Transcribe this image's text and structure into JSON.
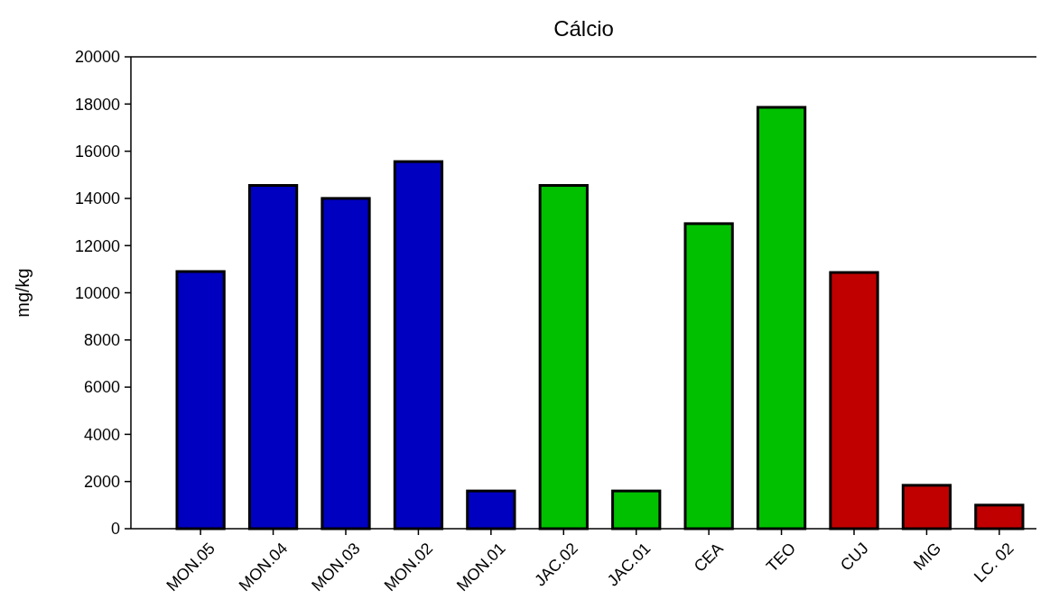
{
  "chart_data": {
    "type": "bar",
    "title": "Cálcio",
    "ylabel": "mg/kg",
    "categories": [
      "MON.05",
      "MON.04",
      "MON.03",
      "MON.02",
      "MON.01",
      "JAC.02",
      "JAC.01",
      "CEA",
      "TEO",
      "CUJ",
      "MIG",
      "LC. 02"
    ],
    "values": [
      10900,
      14550,
      14000,
      15560,
      1600,
      14550,
      1600,
      12930,
      17860,
      10860,
      1840,
      1000
    ],
    "colors": [
      "#0000c0",
      "#0000c0",
      "#0000c0",
      "#0000c0",
      "#0000c0",
      "#00c000",
      "#00c000",
      "#00c000",
      "#00c000",
      "#c00000",
      "#c00000",
      "#c00000"
    ],
    "ylim": [
      0,
      20000
    ],
    "yticks": [
      0,
      2000,
      4000,
      6000,
      8000,
      10000,
      12000,
      14000,
      16000,
      18000,
      20000
    ],
    "grid": false
  }
}
